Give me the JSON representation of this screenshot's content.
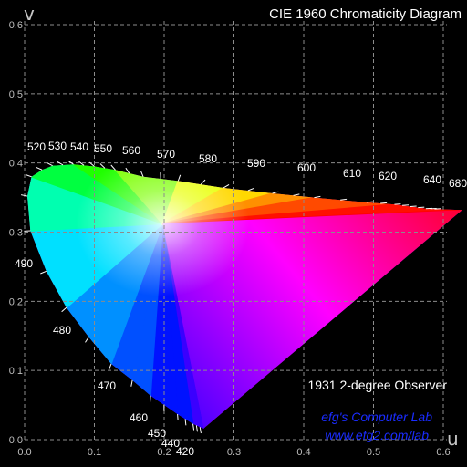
{
  "chart_data": {
    "type": "scatter",
    "title": "CIE 1960 Chromaticity Diagram",
    "xlabel": "u",
    "ylabel": "v",
    "xlim": [
      0,
      0.6
    ],
    "ylim": [
      0,
      0.6
    ],
    "grid": true,
    "xticks": [
      "0.0",
      "0.1",
      "0.2",
      "0.3",
      "0.4",
      "0.5",
      "0.6"
    ],
    "yticks": [
      "0.0",
      "0.1",
      "0.2",
      "0.3",
      "0.4",
      "0.5",
      "0.6"
    ],
    "annotation_observer": "1931 2-degree Observer",
    "credit_line1": "efg's Computer Lab",
    "credit_line2": "www.efg2.com/lab",
    "spectral_locus": [
      {
        "nm": 380,
        "u": 0.2568,
        "v": 0.0165
      },
      {
        "nm": 420,
        "u": 0.2564,
        "v": 0.0162
      },
      {
        "nm": 430,
        "u": 0.2558,
        "v": 0.0165
      },
      {
        "nm": 440,
        "u": 0.2512,
        "v": 0.0183
      },
      {
        "nm": 450,
        "u": 0.2412,
        "v": 0.0229
      },
      {
        "nm": 460,
        "u": 0.2191,
        "v": 0.0369
      },
      {
        "nm": 470,
        "u": 0.1805,
        "v": 0.0636
      },
      {
        "nm": 475,
        "u": 0.1544,
        "v": 0.0859
      },
      {
        "nm": 480,
        "u": 0.1241,
        "v": 0.1096
      },
      {
        "nm": 485,
        "u": 0.0919,
        "v": 0.1483
      },
      {
        "nm": 490,
        "u": 0.06,
        "v": 0.191
      },
      {
        "nm": 495,
        "u": 0.0311,
        "v": 0.2435
      },
      {
        "nm": 500,
        "u": 0.0083,
        "v": 0.302
      },
      {
        "nm": 505,
        "u": 0.0039,
        "v": 0.352
      },
      {
        "nm": 510,
        "u": 0.01,
        "v": 0.38
      },
      {
        "nm": 515,
        "u": 0.025,
        "v": 0.39
      },
      {
        "nm": 520,
        "u": 0.04,
        "v": 0.396
      },
      {
        "nm": 530,
        "u": 0.07,
        "v": 0.398
      },
      {
        "nm": 540,
        "u": 0.1,
        "v": 0.395
      },
      {
        "nm": 550,
        "u": 0.13,
        "v": 0.39
      },
      {
        "nm": 560,
        "u": 0.17,
        "v": 0.38
      },
      {
        "nm": 570,
        "u": 0.22,
        "v": 0.374
      },
      {
        "nm": 580,
        "u": 0.285,
        "v": 0.364
      },
      {
        "nm": 590,
        "u": 0.355,
        "v": 0.356
      },
      {
        "nm": 600,
        "u": 0.415,
        "v": 0.35
      },
      {
        "nm": 610,
        "u": 0.49,
        "v": 0.343
      },
      {
        "nm": 620,
        "u": 0.53,
        "v": 0.34
      },
      {
        "nm": 640,
        "u": 0.575,
        "v": 0.334
      },
      {
        "nm": 680,
        "u": 0.625,
        "v": 0.332
      },
      {
        "nm": 780,
        "u": 0.627,
        "v": 0.332
      }
    ],
    "wavelength_labels": [
      "520",
      "530",
      "540",
      "550",
      "560",
      "570",
      "580",
      "590",
      "600",
      "610",
      "620",
      "640",
      "680",
      "490",
      "480",
      "470",
      "460",
      "450",
      "440",
      "420"
    ]
  }
}
